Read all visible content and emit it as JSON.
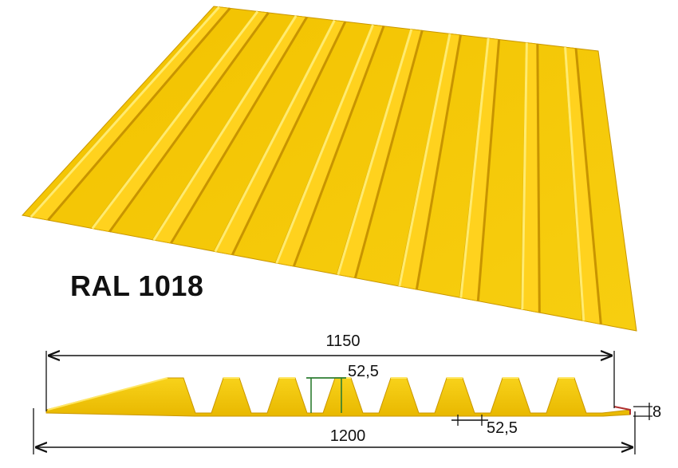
{
  "product": {
    "color_code": "RAL 1018",
    "color_hex": "#F5C800"
  },
  "dimensions": {
    "useful_width": "1150",
    "full_width": "1200",
    "top_rib_width": "52,5",
    "bottom_rib_width": "52,5",
    "profile_height": "8"
  },
  "palette": {
    "sheet_yellow": "#F5C800",
    "sheet_light": "#FFE033",
    "sheet_shadow": "#D9A800",
    "dimension_line": "#111111",
    "rib_marker": "#2E7D32"
  }
}
